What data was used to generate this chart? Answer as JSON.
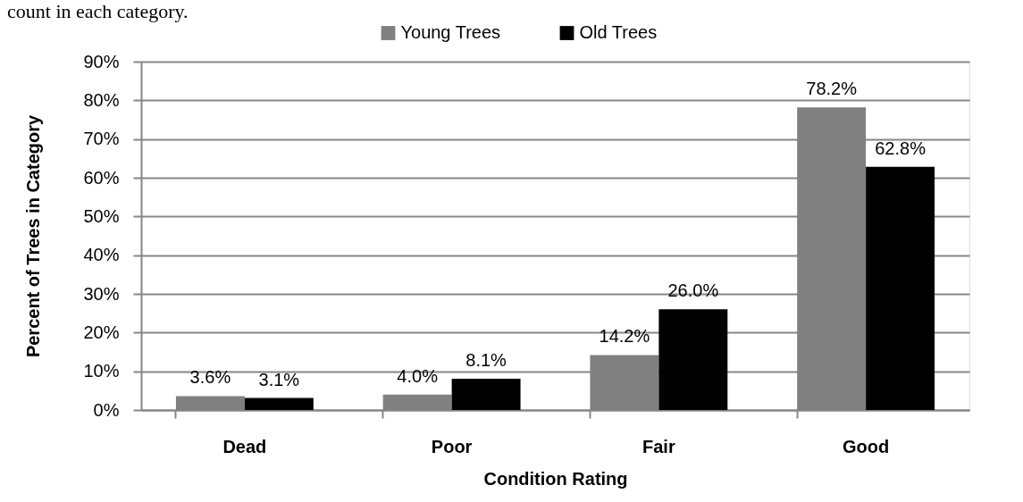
{
  "chart_data": {
    "type": "bar",
    "annotations": [
      "count in each category."
    ],
    "legend": "top",
    "grid": "y",
    "xlabel": "Condition Rating",
    "ylabel": "Percent of Trees in Category",
    "categories": [
      "Dead",
      "Poor",
      "Fair",
      "Good"
    ],
    "series": [
      {
        "name": "Young Trees",
        "color": "#808080",
        "values": [
          3.6,
          4.0,
          14.2,
          78.2
        ],
        "value_labels": [
          "3.6%",
          "4.0%",
          "14.2%",
          "78.2%"
        ]
      },
      {
        "name": "Old Trees",
        "color": "#000000",
        "values": [
          3.1,
          8.1,
          26.0,
          62.8
        ],
        "value_labels": [
          "3.1%",
          "8.1%",
          "26.0%",
          "62.8%"
        ]
      }
    ],
    "ylim": [
      0,
      90
    ],
    "yticks": [
      {
        "value": 0,
        "label": "0%"
      },
      {
        "value": 10,
        "label": "10%"
      },
      {
        "value": 20,
        "label": "20%"
      },
      {
        "value": 30,
        "label": "30%"
      },
      {
        "value": 40,
        "label": "40%"
      },
      {
        "value": 50,
        "label": "50%"
      },
      {
        "value": 60,
        "label": "60%"
      },
      {
        "value": 70,
        "label": "70%"
      },
      {
        "value": 80,
        "label": "80%"
      },
      {
        "value": 90,
        "label": "90%"
      }
    ]
  }
}
